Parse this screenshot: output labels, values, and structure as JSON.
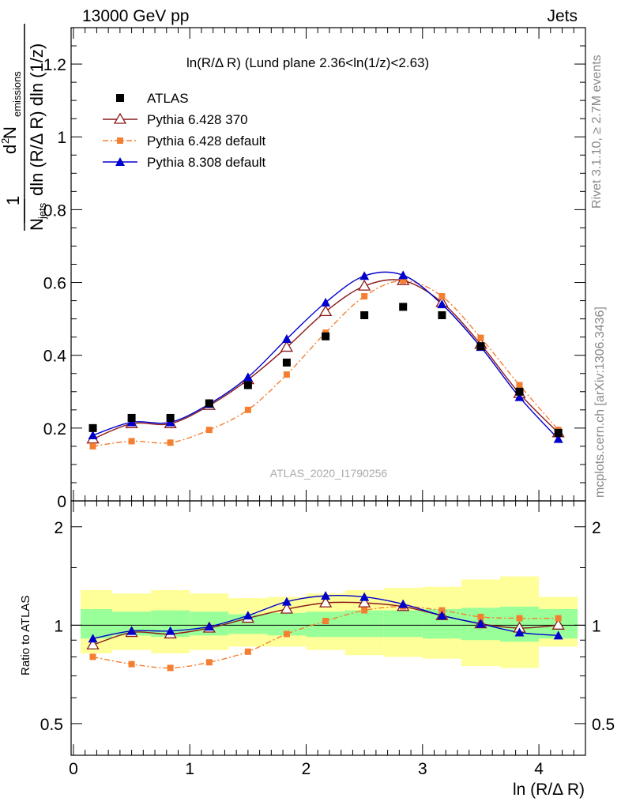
{
  "header": {
    "left": "13000 GeV pp",
    "right": "Jets"
  },
  "side_labels": {
    "top": "Rivet 3.1.10, ≥ 2.7M events",
    "bottom": "mcplots.cern.ch [arXiv:1306.3436]"
  },
  "chart_data": [
    {
      "type": "scatter",
      "title": "ln(R/Δ R) (Lund plane 2.36<ln(1/z)<2.63)",
      "watermark": "ATLAS_2020_I1790256",
      "ylabel": "1/N_jets d²N_emissions / dln(R/Δ R) dln(1/z)",
      "ylabel_parts": {
        "num_a": "1",
        "den_a": "N",
        "den_a_sub": "jets",
        "num_b": "d",
        "num_b_sup": "2",
        "num_b_rest": " N",
        "num_b_sub": "emissions",
        "den_b": "dln (R/Δ R) dln (1/z)"
      },
      "xlim": [
        -0.02,
        4.4
      ],
      "ylim": [
        0,
        1.3
      ],
      "yticks": [
        0,
        0.2,
        0.4,
        0.6,
        0.8,
        1,
        1.2
      ],
      "ytick_labels": [
        "0",
        "0.2",
        "0.4",
        "0.6",
        "0.8",
        "1",
        "1.2"
      ],
      "legend_position": "top-left",
      "x": [
        0.167,
        0.5,
        0.833,
        1.167,
        1.5,
        1.833,
        2.167,
        2.5,
        2.833,
        3.167,
        3.5,
        3.833,
        4.167
      ],
      "series": [
        {
          "name": "ATLAS",
          "style": "data",
          "color": "#000000",
          "marker": "square",
          "values": [
            0.2,
            0.228,
            0.228,
            0.268,
            0.318,
            0.38,
            0.452,
            0.51,
            0.533,
            0.51,
            0.425,
            0.3,
            0.187
          ]
        },
        {
          "name": "Pythia 6.428 370",
          "style": "solid",
          "color": "#8b1a1a",
          "marker": "triangle-open",
          "values": [
            0.17,
            0.212,
            0.212,
            0.262,
            0.333,
            0.422,
            0.52,
            0.59,
            0.605,
            0.545,
            0.43,
            0.295,
            0.187
          ]
        },
        {
          "name": "Pythia 6.428 default",
          "style": "dashdot",
          "color": "#f47f30",
          "marker": "square-small",
          "values": [
            0.15,
            0.164,
            0.16,
            0.195,
            0.25,
            0.347,
            0.462,
            0.562,
            0.605,
            0.562,
            0.448,
            0.318,
            0.195
          ]
        },
        {
          "name": "Pythia 8.308 default",
          "style": "solid",
          "color": "#0000cc",
          "marker": "triangle-filled",
          "values": [
            0.18,
            0.216,
            0.216,
            0.266,
            0.34,
            0.445,
            0.545,
            0.618,
            0.62,
            0.54,
            0.423,
            0.285,
            0.17
          ]
        }
      ]
    },
    {
      "type": "scatter",
      "ylabel": "Ratio to ATLAS",
      "xlabel": "ln (R/Δ R)",
      "xlim": [
        -0.02,
        4.4
      ],
      "ylim": [
        0.4,
        2.4
      ],
      "log_y": true,
      "yticks": [
        0.5,
        1,
        2
      ],
      "ytick_labels": [
        "0.5",
        "1",
        "2"
      ],
      "xticks": [
        0,
        1,
        2,
        3,
        4
      ],
      "xtick_labels": [
        "0",
        "1",
        "2",
        "3",
        "4"
      ],
      "x_edges": [
        0,
        0.333,
        0.667,
        1,
        1.333,
        1.667,
        2,
        2.333,
        2.667,
        3,
        3.333,
        3.667,
        4,
        4.333
      ],
      "band_inner": [
        [
          0.91,
          1.12
        ],
        [
          0.93,
          1.1
        ],
        [
          0.92,
          1.11
        ],
        [
          0.93,
          1.1
        ],
        [
          0.94,
          1.08
        ],
        [
          0.93,
          1.09
        ],
        [
          0.92,
          1.1
        ],
        [
          0.92,
          1.11
        ],
        [
          0.92,
          1.11
        ],
        [
          0.91,
          1.12
        ],
        [
          0.9,
          1.13
        ],
        [
          0.89,
          1.14
        ],
        [
          0.91,
          1.12
        ]
      ],
      "band_outer": [
        [
          0.82,
          1.28
        ],
        [
          0.84,
          1.25
        ],
        [
          0.82,
          1.28
        ],
        [
          0.84,
          1.25
        ],
        [
          0.86,
          1.21
        ],
        [
          0.86,
          1.22
        ],
        [
          0.84,
          1.25
        ],
        [
          0.81,
          1.28
        ],
        [
          0.8,
          1.3
        ],
        [
          0.79,
          1.31
        ],
        [
          0.75,
          1.38
        ],
        [
          0.74,
          1.41
        ],
        [
          0.86,
          1.22
        ]
      ],
      "series": [
        {
          "name": "Pythia 6.428 370",
          "values": [
            0.87,
            0.95,
            0.94,
            0.98,
            1.05,
            1.12,
            1.17,
            1.17,
            1.14,
            1.07,
            1.01,
            0.98,
            1.0
          ]
        },
        {
          "name": "Pythia 6.428 default",
          "values": [
            0.8,
            0.76,
            0.74,
            0.77,
            0.83,
            0.94,
            1.03,
            1.11,
            1.14,
            1.11,
            1.06,
            1.05,
            1.05
          ]
        },
        {
          "name": "Pythia 8.308 default",
          "values": [
            0.91,
            0.96,
            0.96,
            0.99,
            1.07,
            1.18,
            1.23,
            1.22,
            1.16,
            1.07,
            1.01,
            0.95,
            0.93
          ]
        }
      ]
    }
  ]
}
